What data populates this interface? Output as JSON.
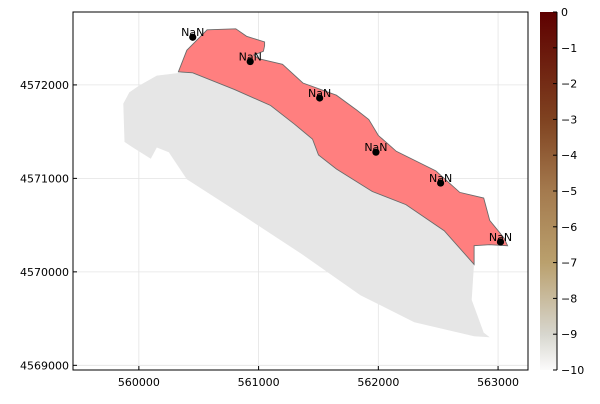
{
  "chart_data": {
    "type": "scatter",
    "title": "",
    "xlabel": "",
    "ylabel": "",
    "xlim": [
      559450,
      563250
    ],
    "ylim": [
      4568950,
      4572780
    ],
    "x_ticks": [
      560000,
      561000,
      562000,
      563000
    ],
    "y_ticks": [
      4569000,
      4570000,
      4571000,
      4572000
    ],
    "x_tick_labels": [
      "560000",
      "561000",
      "562000",
      "563000"
    ],
    "y_tick_labels": [
      "4569000",
      "4570000",
      "4571000",
      "4572000"
    ],
    "grid": true,
    "legend": "none",
    "background_region": {
      "color": "#e6e6e6",
      "outline": [
        [
          560150,
          4572100
        ],
        [
          560420,
          4572140
        ],
        [
          561100,
          4572020
        ],
        [
          561680,
          4571650
        ],
        [
          562050,
          4571250
        ],
        [
          562580,
          4570880
        ],
        [
          562810,
          4570520
        ],
        [
          562800,
          4570100
        ],
        [
          562780,
          4569700
        ],
        [
          562880,
          4569350
        ],
        [
          562930,
          4569300
        ],
        [
          562800,
          4569310
        ],
        [
          562300,
          4569460
        ],
        [
          561850,
          4569750
        ],
        [
          561350,
          4570200
        ],
        [
          560850,
          4570620
        ],
        [
          560400,
          4570990
        ],
        [
          560250,
          4571280
        ],
        [
          560150,
          4571330
        ],
        [
          560100,
          4571210
        ],
        [
          559950,
          4571330
        ],
        [
          559880,
          4571390
        ],
        [
          559870,
          4571800
        ],
        [
          559920,
          4571920
        ],
        [
          560000,
          4571990
        ]
      ]
    },
    "highlight_region": {
      "color": "#ff7f7f",
      "outline": [
        [
          560330,
          4572140
        ],
        [
          560400,
          4572370
        ],
        [
          560570,
          4572590
        ],
        [
          560810,
          4572600
        ],
        [
          560900,
          4572520
        ],
        [
          561050,
          4572460
        ],
        [
          561050,
          4572420
        ],
        [
          561040,
          4572360
        ],
        [
          560960,
          4572320
        ],
        [
          561000,
          4572280
        ],
        [
          561200,
          4572220
        ],
        [
          561370,
          4572020
        ],
        [
          561650,
          4571890
        ],
        [
          561820,
          4571730
        ],
        [
          561920,
          4571630
        ],
        [
          562000,
          4571460
        ],
        [
          562150,
          4571290
        ],
        [
          562480,
          4571080
        ],
        [
          562680,
          4570850
        ],
        [
          562880,
          4570790
        ],
        [
          562930,
          4570550
        ],
        [
          563000,
          4570440
        ],
        [
          563050,
          4570360
        ],
        [
          563080,
          4570280
        ],
        [
          562930,
          4570290
        ],
        [
          562800,
          4570280
        ],
        [
          562800,
          4570080
        ],
        [
          562550,
          4570440
        ],
        [
          562230,
          4570720
        ],
        [
          561950,
          4570860
        ],
        [
          561650,
          4571100
        ],
        [
          561500,
          4571250
        ],
        [
          561450,
          4571420
        ],
        [
          561300,
          4571580
        ],
        [
          561100,
          4571780
        ],
        [
          560800,
          4571950
        ],
        [
          560450,
          4572130
        ]
      ]
    },
    "points": {
      "color": "#000000",
      "label": "NaN",
      "x": [
        560450,
        560930,
        561510,
        561980,
        562520,
        563020
      ],
      "y": [
        4572510,
        4572250,
        4571860,
        4571280,
        4570950,
        4570320
      ]
    },
    "colorbar": {
      "range": [
        -10,
        0
      ],
      "ticks": [
        0,
        -1,
        -2,
        -3,
        -4,
        -5,
        -6,
        -7,
        -8,
        -9,
        -10
      ],
      "tick_labels": [
        "0",
        "−1",
        "−2",
        "−3",
        "−4",
        "−5",
        "−6",
        "−7",
        "−8",
        "−9",
        "−10"
      ],
      "stops": [
        {
          "value": 0,
          "color": "#5e0000"
        },
        {
          "value": -3,
          "color": "#7f4220"
        },
        {
          "value": -5,
          "color": "#a47a4e"
        },
        {
          "value": -7,
          "color": "#baa06d"
        },
        {
          "value": -9,
          "color": "#d7d6ce"
        },
        {
          "value": -10,
          "color": "#fbfbfb"
        }
      ]
    }
  }
}
